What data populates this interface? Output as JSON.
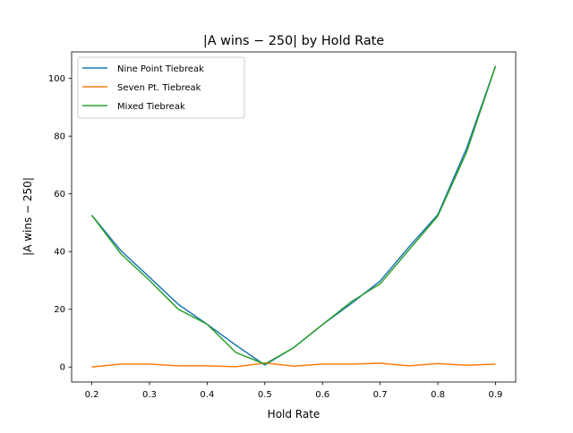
{
  "chart_data": {
    "type": "line",
    "title": "|A wins − 250| by Hold Rate",
    "xlabel": "Hold Rate",
    "ylabel": "|A wins − 250|",
    "xlim": [
      0.165,
      0.935
    ],
    "ylim": [
      -5.2,
      109.2
    ],
    "xticks": [
      "0.2",
      "0.3",
      "0.4",
      "0.5",
      "0.6",
      "0.7",
      "0.8",
      "0.9"
    ],
    "yticks": [
      "0",
      "20",
      "40",
      "60",
      "80",
      "100"
    ],
    "grid": false,
    "legend_position": "top-left",
    "x": [
      0.2,
      0.25,
      0.3,
      0.35,
      0.4,
      0.45,
      0.5,
      0.55,
      0.6,
      0.65,
      0.7,
      0.75,
      0.8,
      0.85,
      0.9
    ],
    "series": [
      {
        "name": "Nine Point Tiebreak",
        "color": "#1f77b4",
        "values": [
          52.6,
          40.4,
          31.1,
          21.7,
          14.8,
          7.5,
          0.7,
          6.7,
          14.7,
          22.0,
          29.8,
          41.6,
          52.8,
          75.8,
          104.3
        ]
      },
      {
        "name": "Seven Pt. Tiebreak",
        "color": "#ff7f0e",
        "values": [
          0.0,
          1.0,
          1.0,
          0.4,
          0.4,
          0.1,
          1.4,
          0.3,
          1.0,
          1.0,
          1.3,
          0.4,
          1.2,
          0.6,
          1.0
        ]
      },
      {
        "name": "Mixed Tiebreak",
        "color": "#2ca02c",
        "values": [
          52.6,
          39.3,
          30.0,
          20.0,
          14.8,
          5.0,
          1.0,
          6.7,
          14.7,
          22.6,
          28.8,
          40.6,
          52.3,
          74.5,
          104.3
        ]
      }
    ]
  }
}
